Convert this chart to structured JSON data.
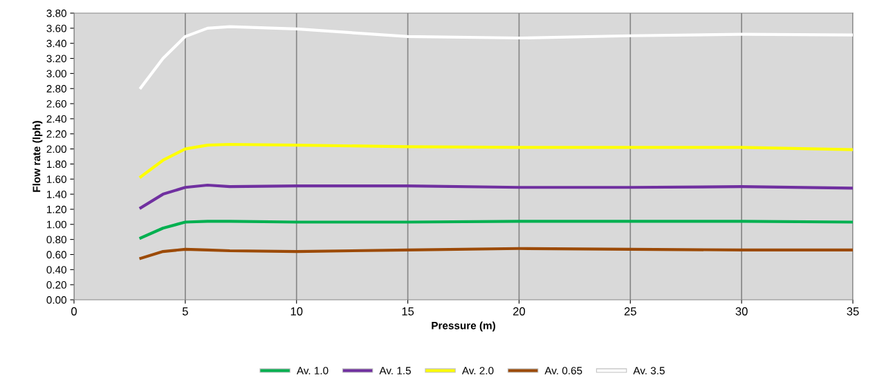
{
  "chart_data": {
    "type": "line",
    "xlabel": "Pressure (m)",
    "ylabel": "Flow rate (lph)",
    "x": [
      3,
      4,
      5,
      6,
      7,
      10,
      15,
      20,
      25,
      30,
      35
    ],
    "series": [
      {
        "name": "Av. 1.0",
        "color": "#00b050",
        "values": [
          0.82,
          0.95,
          1.03,
          1.04,
          1.04,
          1.03,
          1.03,
          1.04,
          1.04,
          1.04,
          1.03
        ]
      },
      {
        "name": "Av. 1.5",
        "color": "#7030a0",
        "values": [
          1.22,
          1.4,
          1.49,
          1.52,
          1.5,
          1.51,
          1.51,
          1.49,
          1.49,
          1.5,
          1.48
        ]
      },
      {
        "name": "Av. 2.0",
        "color": "#ffff00",
        "values": [
          1.63,
          1.85,
          2.0,
          2.05,
          2.06,
          2.05,
          2.03,
          2.02,
          2.02,
          2.02,
          1.99
        ]
      },
      {
        "name": "Av. 0.65",
        "color": "#9c4a06",
        "values": [
          0.55,
          0.64,
          0.67,
          0.66,
          0.65,
          0.64,
          0.66,
          0.68,
          0.67,
          0.66,
          0.66
        ]
      },
      {
        "name": "Av. 3.5",
        "color": "#ffffff",
        "values": [
          2.81,
          3.2,
          3.49,
          3.6,
          3.62,
          3.59,
          3.49,
          3.47,
          3.5,
          3.52,
          3.51
        ]
      }
    ],
    "xlim": [
      0,
      35
    ],
    "xticks": [
      0,
      5,
      10,
      15,
      20,
      25,
      30,
      35
    ],
    "ylim": [
      0,
      3.8
    ],
    "yticks": [
      {
        "value": 0,
        "label": "0.00"
      },
      {
        "value": 0.2,
        "label": "0.20"
      },
      {
        "value": 0.4,
        "label": "0.40"
      },
      {
        "value": 0.6,
        "label": "0.60"
      },
      {
        "value": 0.8,
        "label": "0.80"
      },
      {
        "value": 1.0,
        "label": "1.00"
      },
      {
        "value": 1.2,
        "label": "1.20"
      },
      {
        "value": 1.4,
        "label": "1.40"
      },
      {
        "value": 1.6,
        "label": "1.60"
      },
      {
        "value": 1.8,
        "label": "1.80"
      },
      {
        "value": 2.0,
        "label": "2.00"
      },
      {
        "value": 2.2,
        "label": "2.20"
      },
      {
        "value": 2.4,
        "label": "2.40"
      },
      {
        "value": 2.6,
        "label": "2.60"
      },
      {
        "value": 2.8,
        "label": "2.80"
      },
      {
        "value": 3.0,
        "label": "3.00"
      },
      {
        "value": 3.2,
        "label": "3.20"
      },
      {
        "value": 3.4,
        "label": "3.40"
      },
      {
        "value": 3.6,
        "label": "3.60"
      },
      {
        "value": 3.8,
        "label": "3.80"
      }
    ],
    "grid": "x",
    "legend": "bottom",
    "marker": "none",
    "line_style": "solid"
  }
}
